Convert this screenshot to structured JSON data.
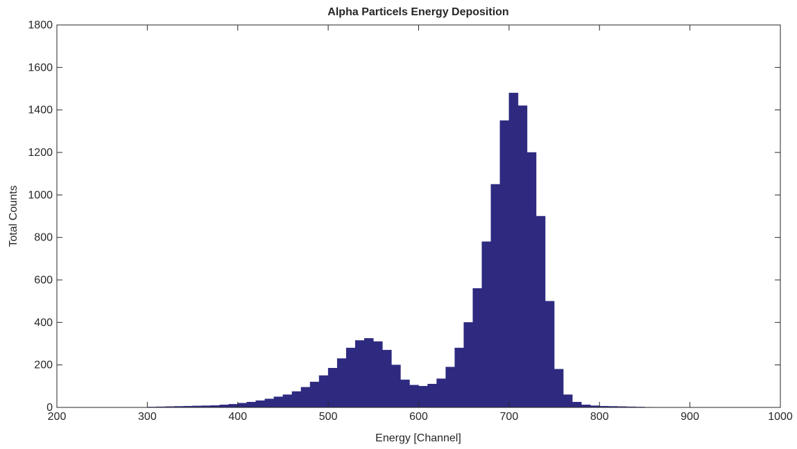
{
  "chart_data": {
    "type": "histogram",
    "title": "Alpha Particels Energy Deposition",
    "xlabel": "Energy [Channel]",
    "ylabel": "Total Counts",
    "bins": [
      300,
      310,
      320,
      330,
      340,
      350,
      360,
      370,
      380,
      390,
      400,
      410,
      420,
      430,
      440,
      450,
      460,
      470,
      480,
      490,
      500,
      510,
      520,
      530,
      540,
      550,
      560,
      570,
      580,
      590,
      600,
      610,
      620,
      630,
      640,
      650,
      660,
      670,
      680,
      690,
      700,
      710,
      720,
      730,
      740,
      750,
      760,
      770,
      780,
      790,
      800,
      810,
      820,
      830,
      840,
      850,
      860
    ],
    "counts": [
      2,
      3,
      4,
      5,
      6,
      7,
      8,
      9,
      12,
      15,
      20,
      25,
      32,
      40,
      50,
      60,
      75,
      95,
      120,
      150,
      185,
      230,
      280,
      315,
      325,
      310,
      270,
      200,
      130,
      105,
      100,
      110,
      135,
      190,
      280,
      400,
      560,
      780,
      1050,
      1350,
      1480,
      1420,
      1200,
      900,
      500,
      180,
      60,
      25,
      12,
      8,
      6,
      5,
      4,
      3,
      2,
      1
    ],
    "color": "#2e2a80",
    "xlim": [
      200,
      1000
    ],
    "xticks": [
      200,
      300,
      400,
      500,
      600,
      700,
      800,
      900,
      1000
    ],
    "ylim": [
      0,
      1800
    ],
    "yticks": [
      0,
      200,
      400,
      600,
      800,
      1000,
      1200,
      1400,
      1600,
      1800
    ],
    "grid": false
  }
}
